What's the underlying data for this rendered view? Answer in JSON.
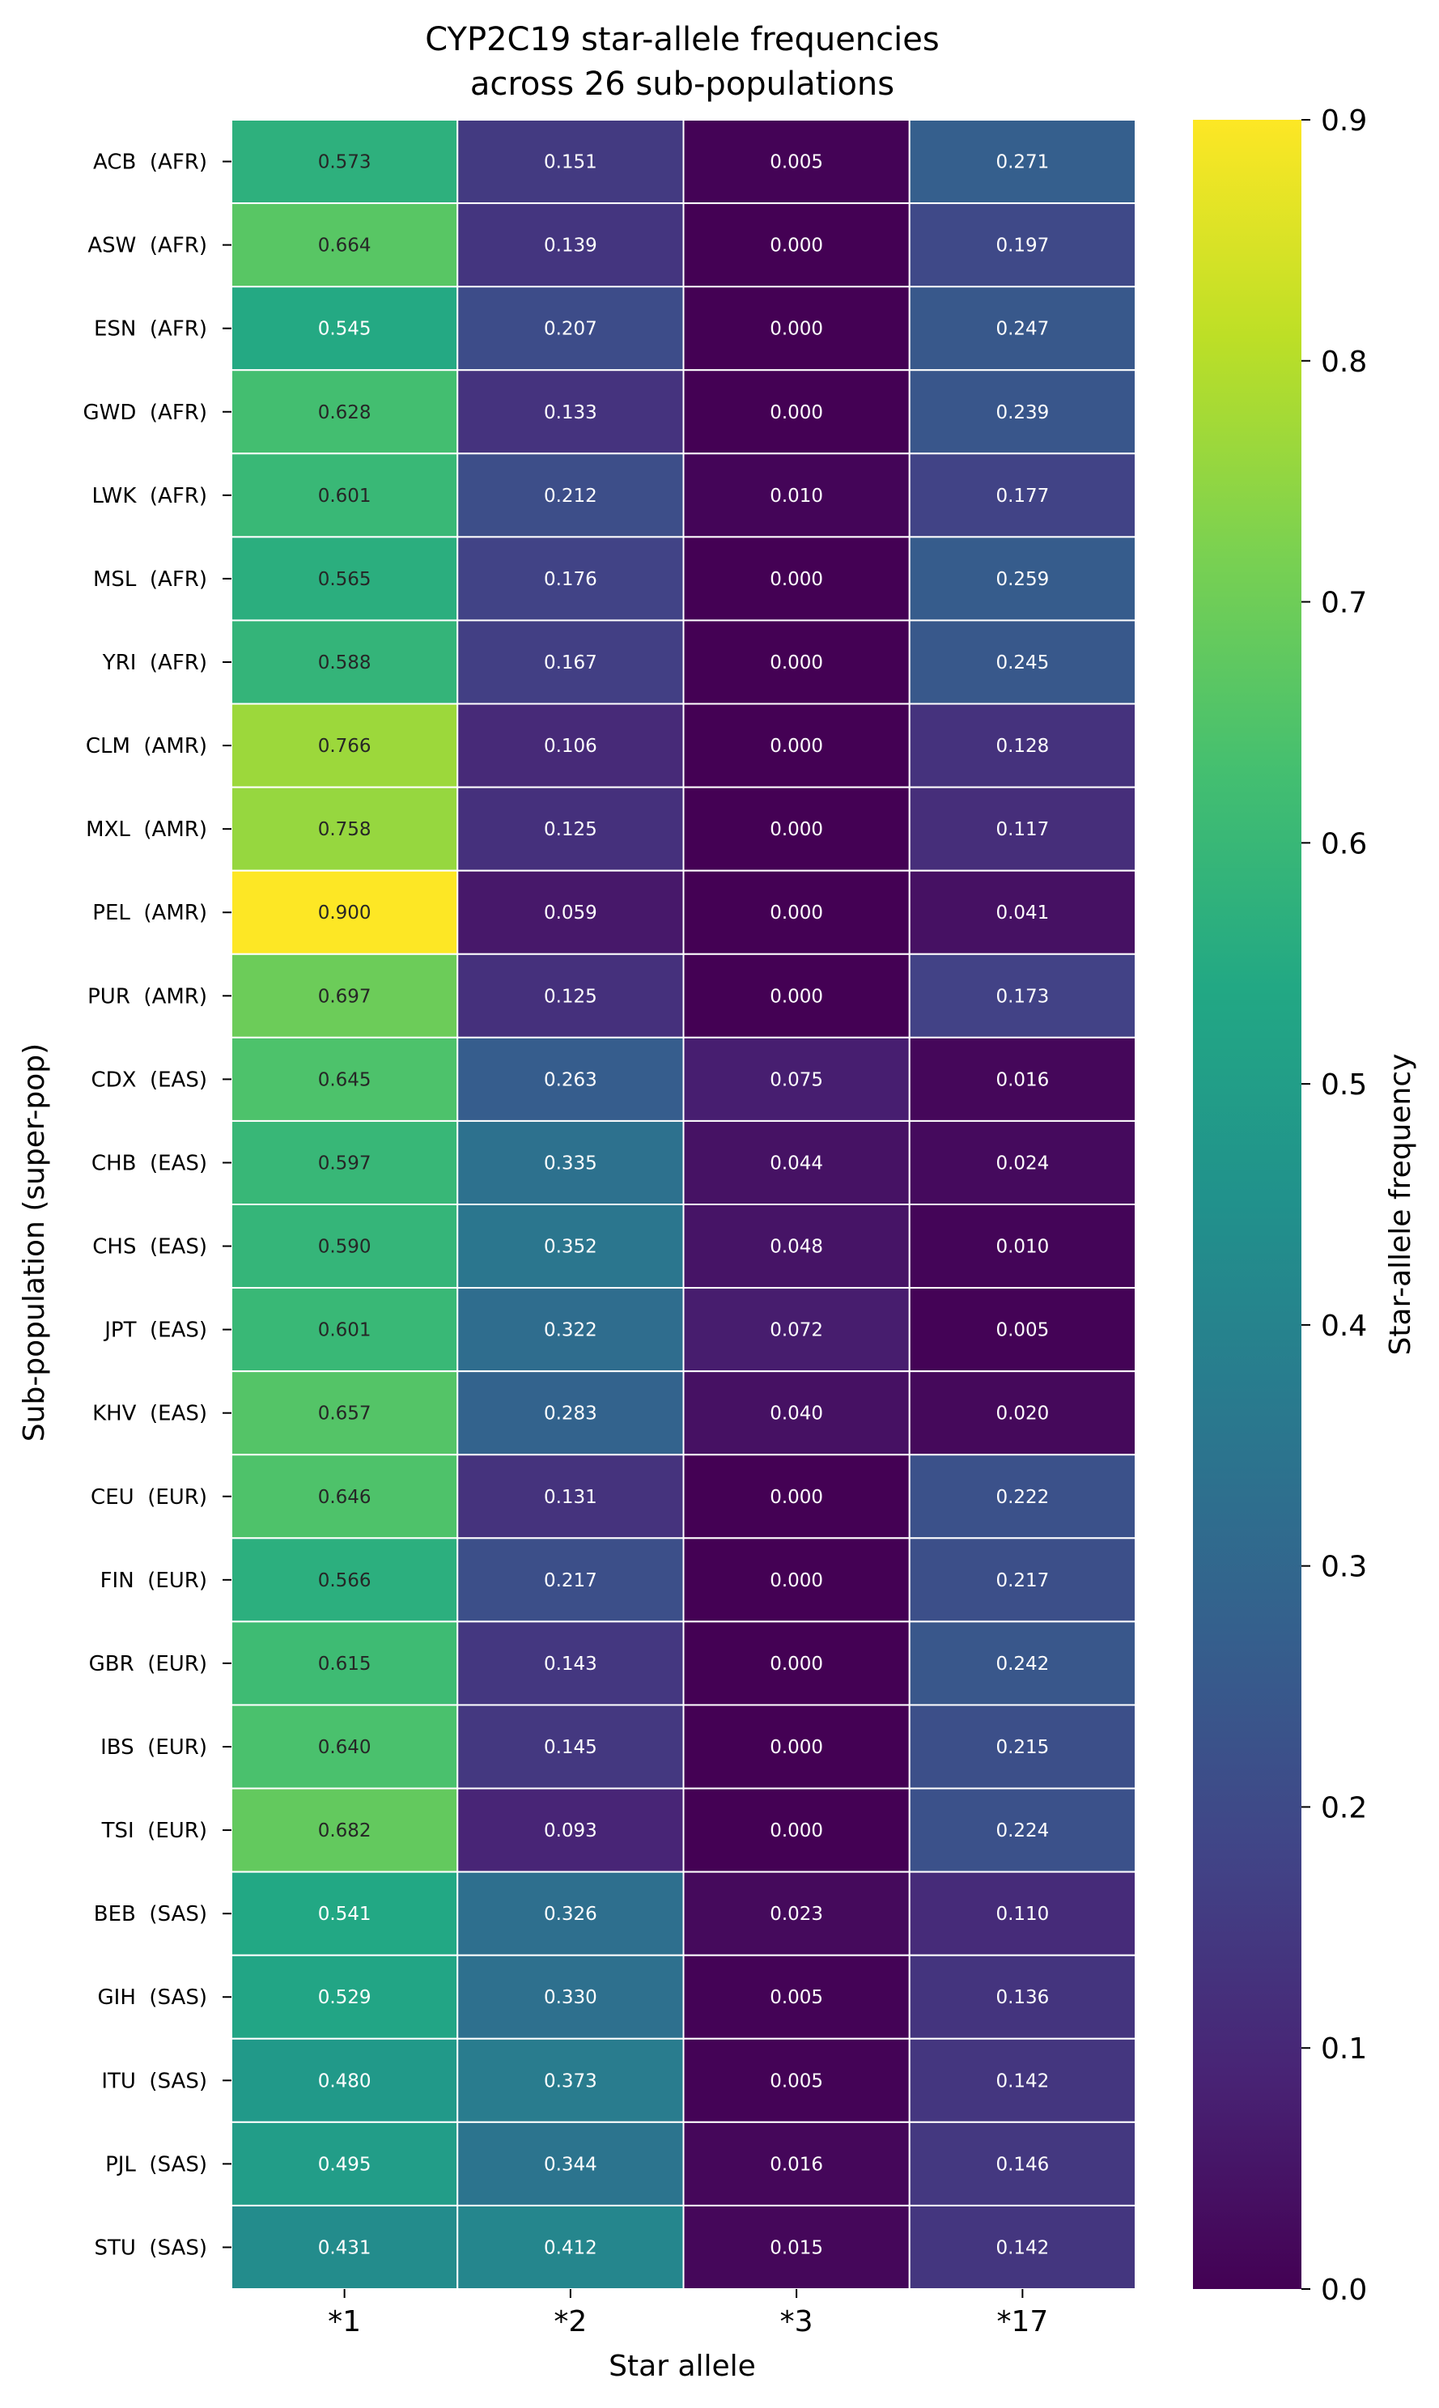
{
  "chart_data": {
    "type": "heatmap",
    "title": [
      "CYP2C19 star-allele frequencies",
      "across 26 sub-populations"
    ],
    "xlabel": "Star allele",
    "ylabel": "Sub-population (super-pop)",
    "colorbar_label": "Star-allele frequency",
    "colormap": "viridis",
    "clim": [
      0.0,
      0.9
    ],
    "colorbar_ticks": [
      "0.0",
      "0.1",
      "0.2",
      "0.3",
      "0.4",
      "0.5",
      "0.6",
      "0.7",
      "0.8",
      "0.9"
    ],
    "columns": [
      "*1",
      "*2",
      "*3",
      "*17"
    ],
    "rows": [
      {
        "label": "ACB  (AFR)",
        "values": [
          0.573,
          0.151,
          0.005,
          0.271
        ]
      },
      {
        "label": "ASW  (AFR)",
        "values": [
          0.664,
          0.139,
          0.0,
          0.197
        ]
      },
      {
        "label": "ESN  (AFR)",
        "values": [
          0.545,
          0.207,
          0.0,
          0.247
        ]
      },
      {
        "label": "GWD  (AFR)",
        "values": [
          0.628,
          0.133,
          0.0,
          0.239
        ]
      },
      {
        "label": "LWK  (AFR)",
        "values": [
          0.601,
          0.212,
          0.01,
          0.177
        ]
      },
      {
        "label": "MSL  (AFR)",
        "values": [
          0.565,
          0.176,
          0.0,
          0.259
        ]
      },
      {
        "label": "YRI  (AFR)",
        "values": [
          0.588,
          0.167,
          0.0,
          0.245
        ]
      },
      {
        "label": "CLM  (AMR)",
        "values": [
          0.766,
          0.106,
          0.0,
          0.128
        ]
      },
      {
        "label": "MXL  (AMR)",
        "values": [
          0.758,
          0.125,
          0.0,
          0.117
        ]
      },
      {
        "label": "PEL  (AMR)",
        "values": [
          0.9,
          0.059,
          0.0,
          0.041
        ]
      },
      {
        "label": "PUR  (AMR)",
        "values": [
          0.697,
          0.125,
          0.0,
          0.173
        ]
      },
      {
        "label": "CDX  (EAS)",
        "values": [
          0.645,
          0.263,
          0.075,
          0.016
        ]
      },
      {
        "label": "CHB  (EAS)",
        "values": [
          0.597,
          0.335,
          0.044,
          0.024
        ]
      },
      {
        "label": "CHS  (EAS)",
        "values": [
          0.59,
          0.352,
          0.048,
          0.01
        ]
      },
      {
        "label": "JPT  (EAS)",
        "values": [
          0.601,
          0.322,
          0.072,
          0.005
        ]
      },
      {
        "label": "KHV  (EAS)",
        "values": [
          0.657,
          0.283,
          0.04,
          0.02
        ]
      },
      {
        "label": "CEU  (EUR)",
        "values": [
          0.646,
          0.131,
          0.0,
          0.222
        ]
      },
      {
        "label": "FIN  (EUR)",
        "values": [
          0.566,
          0.217,
          0.0,
          0.217
        ]
      },
      {
        "label": "GBR  (EUR)",
        "values": [
          0.615,
          0.143,
          0.0,
          0.242
        ]
      },
      {
        "label": "IBS  (EUR)",
        "values": [
          0.64,
          0.145,
          0.0,
          0.215
        ]
      },
      {
        "label": "TSI  (EUR)",
        "values": [
          0.682,
          0.093,
          0.0,
          0.224
        ]
      },
      {
        "label": "BEB  (SAS)",
        "values": [
          0.541,
          0.326,
          0.023,
          0.11
        ]
      },
      {
        "label": "GIH  (SAS)",
        "values": [
          0.529,
          0.33,
          0.005,
          0.136
        ]
      },
      {
        "label": "ITU  (SAS)",
        "values": [
          0.48,
          0.373,
          0.005,
          0.142
        ]
      },
      {
        "label": "PJL  (SAS)",
        "values": [
          0.495,
          0.344,
          0.016,
          0.146
        ]
      },
      {
        "label": "STU  (SAS)",
        "values": [
          0.431,
          0.412,
          0.015,
          0.142
        ]
      }
    ]
  }
}
